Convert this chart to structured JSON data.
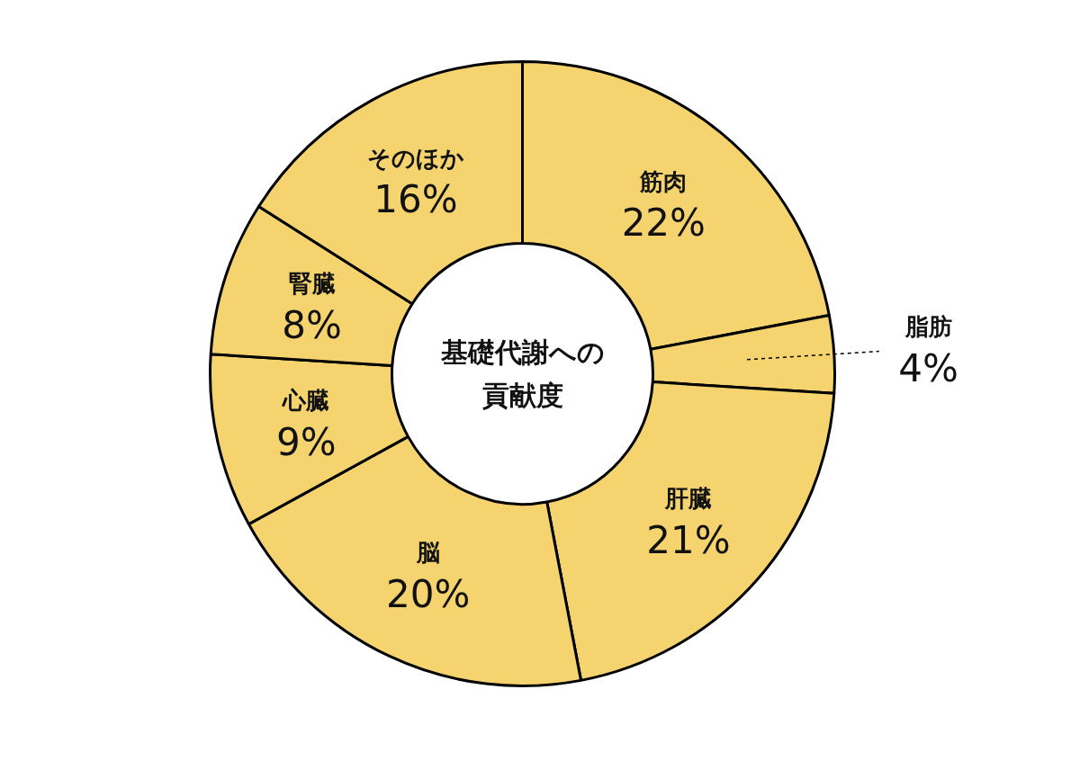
{
  "chart_data": {
    "type": "donut",
    "title": "基礎代謝への貢献度",
    "categories": [
      "筋肉",
      "脂肪",
      "肝臓",
      "脳",
      "心臓",
      "腎臓",
      "そのほか"
    ],
    "values": [
      22,
      4,
      21,
      20,
      9,
      8,
      16
    ],
    "value_labels": [
      "22%",
      "4%",
      "21%",
      "20%",
      "9%",
      "8%",
      "16%"
    ],
    "colors": [
      "#f5d470",
      "#f5d470",
      "#f5d470",
      "#f5d470",
      "#f5d470",
      "#f5d470",
      "#f5d470"
    ]
  }
}
